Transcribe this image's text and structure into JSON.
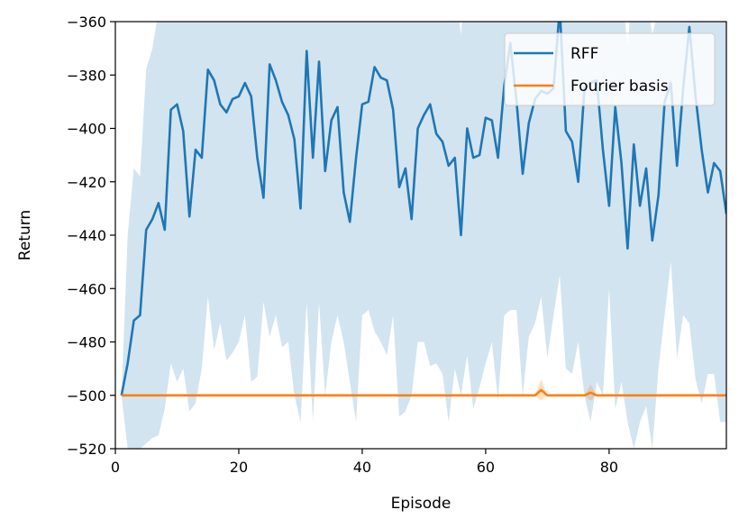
{
  "chart_data": {
    "type": "line",
    "xlabel": "Episode",
    "ylabel": "Return",
    "xlim": [
      0,
      99
    ],
    "ylim": [
      -520,
      -360
    ],
    "xticks": [
      0,
      20,
      40,
      60,
      80
    ],
    "yticks": [
      -360,
      -380,
      -400,
      -420,
      -440,
      -460,
      -480,
      -500,
      -520
    ],
    "grid": false,
    "legend_position": "top-right",
    "series": [
      {
        "name": "RFF",
        "color": "#1f77b4",
        "band_color": "#1f77b4",
        "x": [
          1,
          2,
          3,
          4,
          5,
          6,
          7,
          8,
          9,
          10,
          11,
          12,
          13,
          14,
          15,
          16,
          17,
          18,
          19,
          20,
          21,
          22,
          23,
          24,
          25,
          26,
          27,
          28,
          29,
          30,
          31,
          32,
          33,
          34,
          35,
          36,
          37,
          38,
          39,
          40,
          41,
          42,
          43,
          44,
          45,
          46,
          47,
          48,
          49,
          50,
          51,
          52,
          53,
          54,
          55,
          56,
          57,
          58,
          59,
          60,
          61,
          62,
          63,
          64,
          65,
          66,
          67,
          68,
          69,
          70,
          71,
          72,
          73,
          74,
          75,
          76,
          77,
          78,
          79,
          80,
          81,
          82,
          83,
          84,
          85,
          86,
          87,
          88,
          89,
          90,
          91,
          92,
          93,
          94,
          95,
          96,
          97,
          98,
          99
        ],
        "values": [
          -500,
          -488,
          -472,
          -470,
          -438,
          -434,
          -428,
          -438,
          -393,
          -391,
          -401,
          -433,
          -408,
          -411,
          -378,
          -382,
          -391,
          -394,
          -389,
          -388,
          -383,
          -388,
          -411,
          -426,
          -376,
          -382,
          -390,
          -395,
          -404,
          -430,
          -371,
          -411,
          -375,
          -416,
          -397,
          -392,
          -424,
          -435,
          -411,
          -391,
          -390,
          -377,
          -381,
          -382,
          -393,
          -422,
          -415,
          -434,
          -400,
          -395,
          -391,
          -402,
          -405,
          -414,
          -411,
          -440,
          -400,
          -411,
          -410,
          -396,
          -397,
          -411,
          -384,
          -368,
          -390,
          -417,
          -398,
          -389,
          -386,
          -387,
          -385,
          -355,
          -401,
          -405,
          -420,
          -385,
          -383,
          -382,
          -408,
          -429,
          -392,
          -413,
          -445,
          -406,
          -429,
          -415,
          -442,
          -425,
          -390,
          -383,
          -414,
          -385,
          -362,
          -388,
          -408,
          -424,
          -413,
          -416,
          -432
        ],
        "upper": [
          -500,
          -440,
          -415,
          -418,
          -378,
          -370,
          -356,
          -330,
          -320,
          -320,
          -330,
          -340,
          -330,
          -340,
          -320,
          -325,
          -330,
          -335,
          -330,
          -330,
          -325,
          -330,
          -345,
          -355,
          -320,
          -325,
          -330,
          -335,
          -340,
          -355,
          -315,
          -345,
          -320,
          -350,
          -335,
          -330,
          -355,
          -360,
          -345,
          -330,
          -330,
          -320,
          -325,
          -325,
          -335,
          -350,
          -345,
          -360,
          -335,
          -330,
          -330,
          -340,
          -340,
          -350,
          -345,
          -365,
          -335,
          -345,
          -345,
          -330,
          -330,
          -345,
          -325,
          -310,
          -330,
          -350,
          -335,
          -330,
          -325,
          -330,
          -325,
          -300,
          -335,
          -340,
          -350,
          -325,
          -325,
          -320,
          -345,
          -360,
          -330,
          -345,
          -370,
          -340,
          -360,
          -350,
          -365,
          -355,
          -330,
          -325,
          -345,
          -325,
          -305,
          -325,
          -340,
          -355,
          -345,
          -345,
          -355
        ],
        "lower": [
          -500,
          -520,
          -520,
          -520,
          -518,
          -516,
          -515,
          -505,
          -488,
          -495,
          -490,
          -506,
          -503,
          -490,
          -463,
          -483,
          -473,
          -487,
          -484,
          -480,
          -470,
          -495,
          -493,
          -465,
          -478,
          -470,
          -482,
          -480,
          -500,
          -510,
          -465,
          -510,
          -465,
          -500,
          -480,
          -470,
          -480,
          -495,
          -510,
          -470,
          -468,
          -476,
          -480,
          -485,
          -470,
          -508,
          -506,
          -500,
          -480,
          -480,
          -489,
          -488,
          -492,
          -510,
          -490,
          -500,
          -485,
          -505,
          -497,
          -488,
          -480,
          -502,
          -470,
          -468,
          -468,
          -500,
          -478,
          -473,
          -463,
          -486,
          -470,
          -455,
          -490,
          -492,
          -480,
          -500,
          -510,
          -495,
          -500,
          -460,
          -505,
          -495,
          -510,
          -520,
          -510,
          -504,
          -520,
          -490,
          -470,
          -450,
          -486,
          -470,
          -473,
          -494,
          -503,
          -492,
          -492,
          -510,
          -510
        ]
      },
      {
        "name": "Fourier basis",
        "color": "#ff7f0e",
        "band_color": "#ff7f0e",
        "x": [
          1,
          2,
          3,
          4,
          5,
          6,
          7,
          8,
          9,
          10,
          11,
          12,
          13,
          14,
          15,
          16,
          17,
          18,
          19,
          20,
          21,
          22,
          23,
          24,
          25,
          26,
          27,
          28,
          29,
          30,
          31,
          32,
          33,
          34,
          35,
          36,
          37,
          38,
          39,
          40,
          41,
          42,
          43,
          44,
          45,
          46,
          47,
          48,
          49,
          50,
          51,
          52,
          53,
          54,
          55,
          56,
          57,
          58,
          59,
          60,
          61,
          62,
          63,
          64,
          65,
          66,
          67,
          68,
          69,
          70,
          71,
          72,
          73,
          74,
          75,
          76,
          77,
          78,
          79,
          80,
          81,
          82,
          83,
          84,
          85,
          86,
          87,
          88,
          89,
          90,
          91,
          92,
          93,
          94,
          95,
          96,
          97,
          98,
          99
        ],
        "values": [
          -500,
          -500,
          -500,
          -500,
          -500,
          -500,
          -500,
          -500,
          -500,
          -500,
          -500,
          -500,
          -500,
          -500,
          -500,
          -500,
          -500,
          -500,
          -500,
          -500,
          -500,
          -500,
          -500,
          -500,
          -500,
          -500,
          -500,
          -500,
          -500,
          -500,
          -500,
          -500,
          -500,
          -500,
          -500,
          -500,
          -500,
          -500,
          -500,
          -500,
          -500,
          -500,
          -500,
          -500,
          -500,
          -500,
          -500,
          -500,
          -500,
          -500,
          -500,
          -500,
          -500,
          -500,
          -500,
          -500,
          -500,
          -500,
          -500,
          -500,
          -500,
          -500,
          -500,
          -500,
          -500,
          -500,
          -500,
          -500,
          -498,
          -500,
          -500,
          -500,
          -500,
          -500,
          -500,
          -500,
          -499,
          -500,
          -500,
          -500,
          -500,
          -500,
          -500,
          -500,
          -500,
          -500,
          -500,
          -500,
          -500,
          -500,
          -500,
          -500,
          -500,
          -500,
          -500,
          -500,
          -500,
          -500,
          -500
        ],
        "upper": [
          -500,
          -500,
          -500,
          -500,
          -500,
          -500,
          -500,
          -500,
          -500,
          -500,
          -500,
          -500,
          -500,
          -500,
          -500,
          -500,
          -500,
          -500,
          -500,
          -500,
          -500,
          -500,
          -500,
          -500,
          -500,
          -500,
          -500,
          -500,
          -500,
          -500,
          -500,
          -500,
          -500,
          -500,
          -500,
          -500,
          -500,
          -500,
          -500,
          -500,
          -500,
          -500,
          -500,
          -500,
          -500,
          -500,
          -500,
          -500,
          -500,
          -500,
          -500,
          -500,
          -500,
          -500,
          -500,
          -500,
          -500,
          -500,
          -500,
          -500,
          -500,
          -500,
          -500,
          -500,
          -500,
          -500,
          -500,
          -500,
          -494,
          -500,
          -500,
          -500,
          -500,
          -500,
          -500,
          -500,
          -496,
          -500,
          -500,
          -500,
          -500,
          -500,
          -500,
          -500,
          -500,
          -500,
          -500,
          -500,
          -500,
          -500,
          -500,
          -500,
          -500,
          -500,
          -500,
          -500,
          -500,
          -500,
          -500
        ],
        "lower": [
          -500,
          -500,
          -500,
          -500,
          -500,
          -500,
          -500,
          -500,
          -500,
          -500,
          -500,
          -500,
          -500,
          -500,
          -500,
          -500,
          -500,
          -500,
          -500,
          -500,
          -500,
          -500,
          -500,
          -500,
          -500,
          -500,
          -500,
          -500,
          -500,
          -500,
          -500,
          -500,
          -500,
          -500,
          -500,
          -500,
          -500,
          -500,
          -500,
          -500,
          -500,
          -500,
          -500,
          -500,
          -500,
          -500,
          -500,
          -500,
          -500,
          -500,
          -500,
          -500,
          -500,
          -500,
          -500,
          -500,
          -500,
          -500,
          -500,
          -500,
          -500,
          -500,
          -500,
          -500,
          -500,
          -500,
          -500,
          -500,
          -502,
          -500,
          -500,
          -500,
          -500,
          -500,
          -500,
          -500,
          -502,
          -500,
          -500,
          -500,
          -500,
          -500,
          -500,
          -500,
          -500,
          -500,
          -500,
          -500,
          -500,
          -500,
          -500,
          -500,
          -500,
          -500,
          -500,
          -500,
          -500,
          -500,
          -500
        ]
      }
    ]
  }
}
